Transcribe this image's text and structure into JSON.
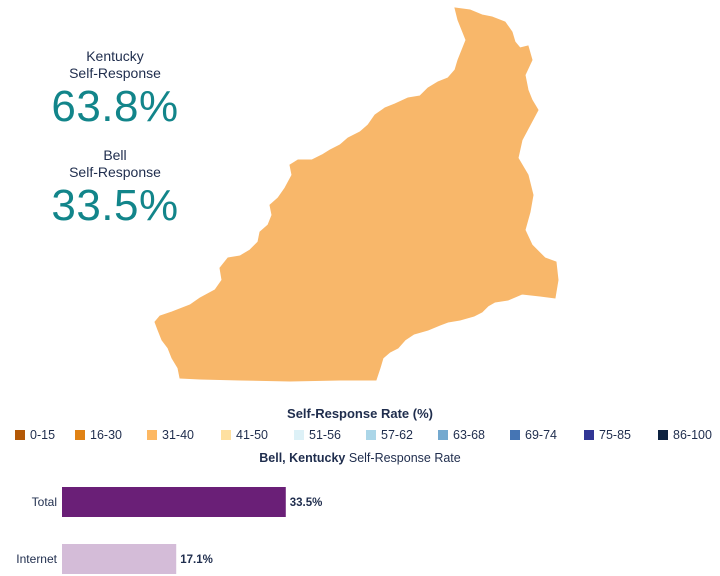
{
  "stats": {
    "state": {
      "line1": "Kentucky",
      "line2": "Self-Response",
      "value": "63.8%"
    },
    "county": {
      "line1": "Bell",
      "line2": "Self-Response",
      "value": "33.5%"
    }
  },
  "map": {
    "region_name": "Bell",
    "fill_color": "#f8b76a"
  },
  "legend": {
    "title": "Self-Response Rate (%)",
    "items": [
      {
        "label": "0-15",
        "color": "#b35806"
      },
      {
        "label": "16-30",
        "color": "#e08214"
      },
      {
        "label": "31-40",
        "color": "#fdb863"
      },
      {
        "label": "41-50",
        "color": "#fee0a0"
      },
      {
        "label": "51-56",
        "color": "#ddf1f7"
      },
      {
        "label": "57-62",
        "color": "#abd6e8"
      },
      {
        "label": "63-68",
        "color": "#74a9cf"
      },
      {
        "label": "69-74",
        "color": "#4575b4"
      },
      {
        "label": "75-85",
        "color": "#313695"
      },
      {
        "label": "86-100",
        "color": "#0d2240"
      }
    ]
  },
  "bar_chart": {
    "title_bold": "Bell, Kentucky",
    "title_rest": " Self-Response Rate"
  },
  "chart_data": {
    "type": "bar",
    "orientation": "horizontal",
    "title": "Bell, Kentucky Self-Response Rate",
    "categories": [
      "Total",
      "Internet"
    ],
    "values": [
      33.5,
      17.1
    ],
    "value_labels": [
      "33.5%",
      "17.1%"
    ],
    "colors": [
      "#6a1f77",
      "#d4bcd8"
    ],
    "xlim": [
      0,
      100
    ],
    "grid": false
  }
}
